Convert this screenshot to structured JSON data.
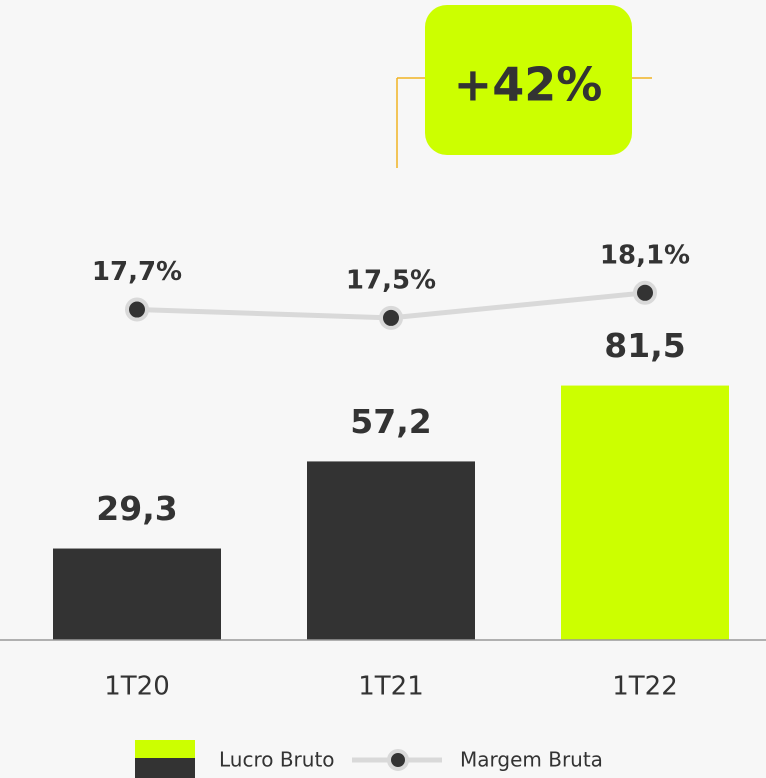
{
  "chart_data": {
    "type": "bar",
    "annotation": "+42%",
    "categories": [
      "1T20",
      "1T21",
      "1T22"
    ],
    "ylim": [
      0,
      205
    ],
    "y2lim": [
      9.8,
      25.1
    ],
    "series": [
      {
        "name": "Lucro Bruto",
        "type": "bar",
        "colors": [
          "#333333",
          "#333333",
          "#ccff00"
        ],
        "values": [
          29.3,
          57.2,
          81.5
        ],
        "value_labels": [
          "29,3",
          "57,2",
          "81,5"
        ]
      },
      {
        "name": "Margem Bruta",
        "type": "line",
        "axis": "y2",
        "color": "#d9d9d9",
        "marker_color": "#333333",
        "values": [
          17.7,
          17.5,
          18.1
        ],
        "value_labels": [
          "17,7%",
          "17,5%",
          "18,1%"
        ]
      }
    ]
  }
}
